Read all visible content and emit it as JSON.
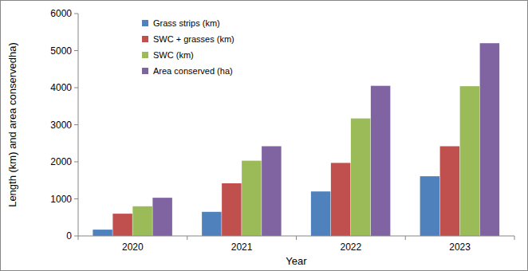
{
  "chart_data": {
    "type": "bar",
    "x_label": "Year",
    "y_label": "Length (km) and  area  conservedha)",
    "categories": [
      "2020",
      "2021",
      "2022",
      "2023"
    ],
    "series": [
      {
        "name": "Grass strips (km)",
        "color": "#4f81bd",
        "values": [
          170,
          650,
          1200,
          1610
        ]
      },
      {
        "name": "SWC + grasses (km)",
        "color": "#c0504d",
        "values": [
          600,
          1420,
          1970,
          2420
        ]
      },
      {
        "name": "SWC (km)",
        "color": "#9bbb59",
        "values": [
          800,
          2030,
          3170,
          4040
        ]
      },
      {
        "name": "Area conserved (ha)",
        "color": "#8064a2",
        "values": [
          1030,
          2420,
          4050,
          5200
        ]
      }
    ],
    "ylim": [
      0,
      6000
    ],
    "yticks": [
      0,
      1000,
      2000,
      3000,
      4000,
      5000,
      6000
    ],
    "grid": false,
    "legend": "top-left"
  }
}
